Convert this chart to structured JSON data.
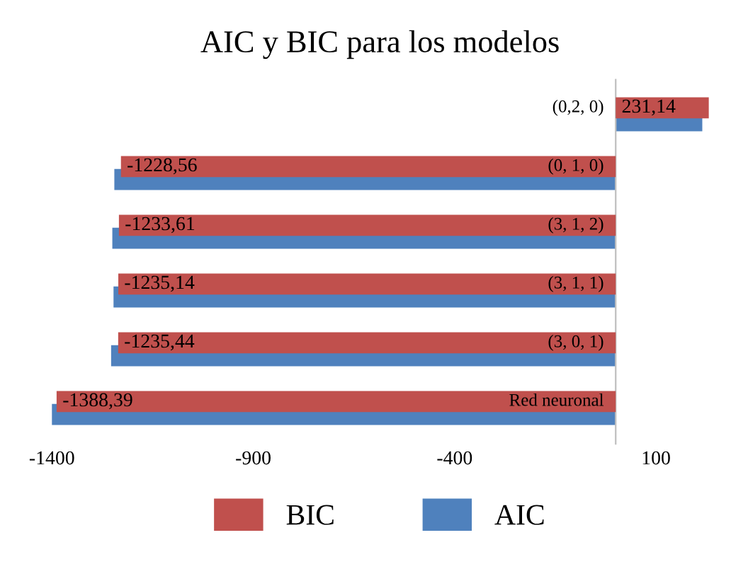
{
  "chart_data": {
    "type": "bar",
    "orientation": "horizontal",
    "title": "AIC y BIC para los modelos",
    "categories": [
      "(0,2, 0)",
      "(0, 1, 0)",
      "(3, 1, 2)",
      "(3, 1, 1)",
      "(3, 0, 1)",
      "Red neuronal"
    ],
    "series": [
      {
        "name": "BIC",
        "color": "#c0504d",
        "values": [
          231.14,
          -1228.56,
          -1233.61,
          -1235.14,
          -1235.44,
          -1388.39
        ],
        "value_labels": [
          "231,14",
          "-1228,56",
          "-1233,61",
          "-1235,14",
          "-1235,44",
          "-1388,39"
        ]
      },
      {
        "name": "AIC",
        "color": "#4f81bd",
        "values": [
          215,
          -1245,
          -1250,
          -1247,
          -1253,
          -1400
        ]
      }
    ],
    "xlim": [
      -1420,
      250
    ],
    "xticks": [
      -1400,
      -900,
      -400,
      100
    ],
    "grid": false,
    "legend": "bottom"
  }
}
